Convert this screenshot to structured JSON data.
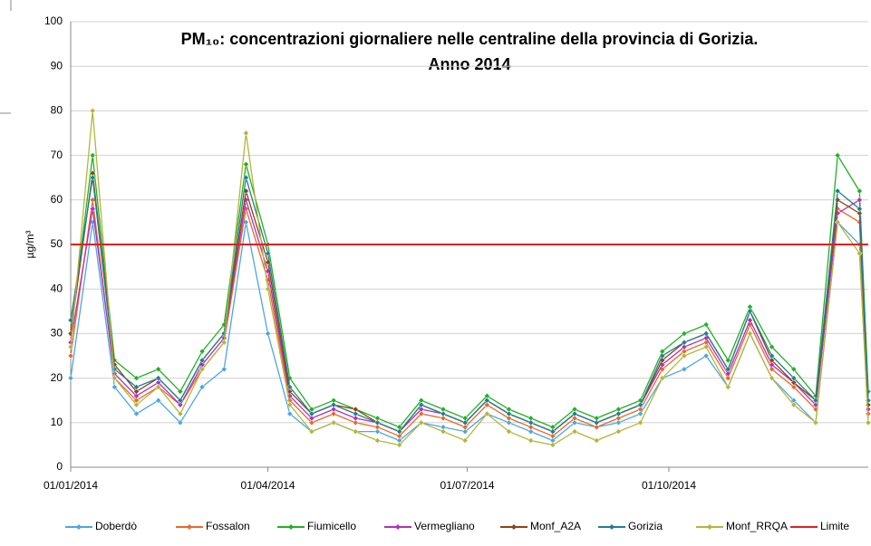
{
  "chart_data": {
    "type": "line",
    "title": "PM₁₀: concentrazioni giornaliere nelle centraline della provincia di Gorizia.",
    "subtitle": "Anno 2014",
    "y_label": "µg/m³",
    "x": [
      "01/01/2014",
      "11/01/2014",
      "21/01/2014",
      "31/01/2014",
      "10/02/2014",
      "20/02/2014",
      "02/03/2014",
      "12/03/2014",
      "22/03/2014",
      "01/04/2014",
      "11/04/2014",
      "21/04/2014",
      "01/05/2014",
      "11/05/2014",
      "21/05/2014",
      "31/05/2014",
      "10/06/2014",
      "20/06/2014",
      "30/06/2014",
      "10/07/2014",
      "20/07/2014",
      "30/07/2014",
      "09/08/2014",
      "19/08/2014",
      "29/08/2014",
      "08/09/2014",
      "18/09/2014",
      "28/09/2014",
      "08/10/2014",
      "18/10/2014",
      "28/10/2014",
      "07/11/2014",
      "17/11/2014",
      "27/11/2014",
      "07/12/2014",
      "17/12/2014",
      "27/12/2014",
      "31/12/2014"
    ],
    "xlim": [
      "01/01/2014",
      "31/12/2014"
    ],
    "xticks": [
      "01/01/2014",
      "01/04/2014",
      "01/07/2014",
      "01/10/2014"
    ],
    "ylim": [
      0,
      100
    ],
    "yticks": [
      0,
      10,
      20,
      30,
      40,
      50,
      60,
      70,
      80,
      90,
      100
    ],
    "grid": true,
    "legend": "bottom",
    "series": [
      {
        "name": "Doberdò",
        "color": "#4da6e0",
        "values": [
          20,
          55,
          18,
          12,
          15,
          10,
          18,
          22,
          55,
          30,
          12,
          8,
          10,
          8,
          8,
          6,
          10,
          9,
          8,
          12,
          10,
          8,
          6,
          10,
          9,
          10,
          12,
          20,
          22,
          25,
          18,
          30,
          20,
          15,
          10,
          55,
          50,
          10
        ]
      },
      {
        "name": "Fossalon",
        "color": "#e8692a",
        "values": [
          25,
          60,
          20,
          15,
          18,
          14,
          22,
          28,
          58,
          42,
          15,
          10,
          12,
          10,
          9,
          7,
          12,
          11,
          9,
          14,
          11,
          9,
          7,
          11,
          9,
          11,
          13,
          22,
          26,
          28,
          20,
          32,
          22,
          18,
          13,
          58,
          55,
          12
        ]
      },
      {
        "name": "Fiumicello",
        "color": "#22b022",
        "values": [
          30,
          70,
          24,
          20,
          22,
          17,
          26,
          32,
          68,
          50,
          20,
          13,
          15,
          13,
          11,
          9,
          15,
          13,
          11,
          16,
          13,
          11,
          9,
          13,
          11,
          13,
          15,
          26,
          30,
          32,
          24,
          36,
          27,
          22,
          16,
          70,
          62,
          17
        ]
      },
      {
        "name": "Vermegliano",
        "color": "#b030c0",
        "values": [
          28,
          58,
          21,
          16,
          19,
          14,
          23,
          29,
          60,
          44,
          16,
          11,
          13,
          11,
          10,
          8,
          13,
          12,
          10,
          15,
          12,
          10,
          8,
          12,
          10,
          12,
          14,
          23,
          27,
          29,
          21,
          33,
          23,
          19,
          14,
          57,
          60,
          13
        ]
      },
      {
        "name": "Monf_A2A",
        "color": "#8b4513",
        "values": [
          30,
          66,
          23,
          17,
          20,
          15,
          24,
          30,
          62,
          46,
          17,
          12,
          14,
          13,
          10,
          8,
          14,
          12,
          10,
          15,
          12,
          10,
          8,
          12,
          10,
          12,
          14,
          24,
          28,
          30,
          22,
          35,
          24,
          19,
          15,
          60,
          57,
          14
        ]
      },
      {
        "name": "Gorizia",
        "color": "#1f7f8f",
        "values": [
          33,
          65,
          22,
          18,
          20,
          15,
          24,
          30,
          65,
          48,
          18,
          12,
          14,
          12,
          10,
          8,
          14,
          12,
          10,
          15,
          12,
          10,
          8,
          12,
          10,
          12,
          14,
          25,
          28,
          30,
          22,
          35,
          25,
          20,
          15,
          62,
          58,
          15
        ]
      },
      {
        "name": "Monf_RRQA",
        "color": "#b5b53c",
        "values": [
          27,
          80,
          20,
          14,
          18,
          12,
          22,
          28,
          75,
          40,
          14,
          8,
          10,
          8,
          6,
          5,
          10,
          8,
          6,
          12,
          8,
          6,
          5,
          8,
          6,
          8,
          10,
          20,
          25,
          27,
          18,
          30,
          20,
          14,
          10,
          55,
          48,
          10
        ]
      },
      {
        "name": "Limite",
        "color": "#e02020",
        "values": [
          50,
          50,
          50,
          50,
          50,
          50,
          50,
          50,
          50,
          50,
          50,
          50,
          50,
          50,
          50,
          50,
          50,
          50,
          50,
          50,
          50,
          50,
          50,
          50,
          50,
          50,
          50,
          50,
          50,
          50,
          50,
          50,
          50,
          50,
          50,
          50,
          50,
          50
        ]
      }
    ]
  }
}
